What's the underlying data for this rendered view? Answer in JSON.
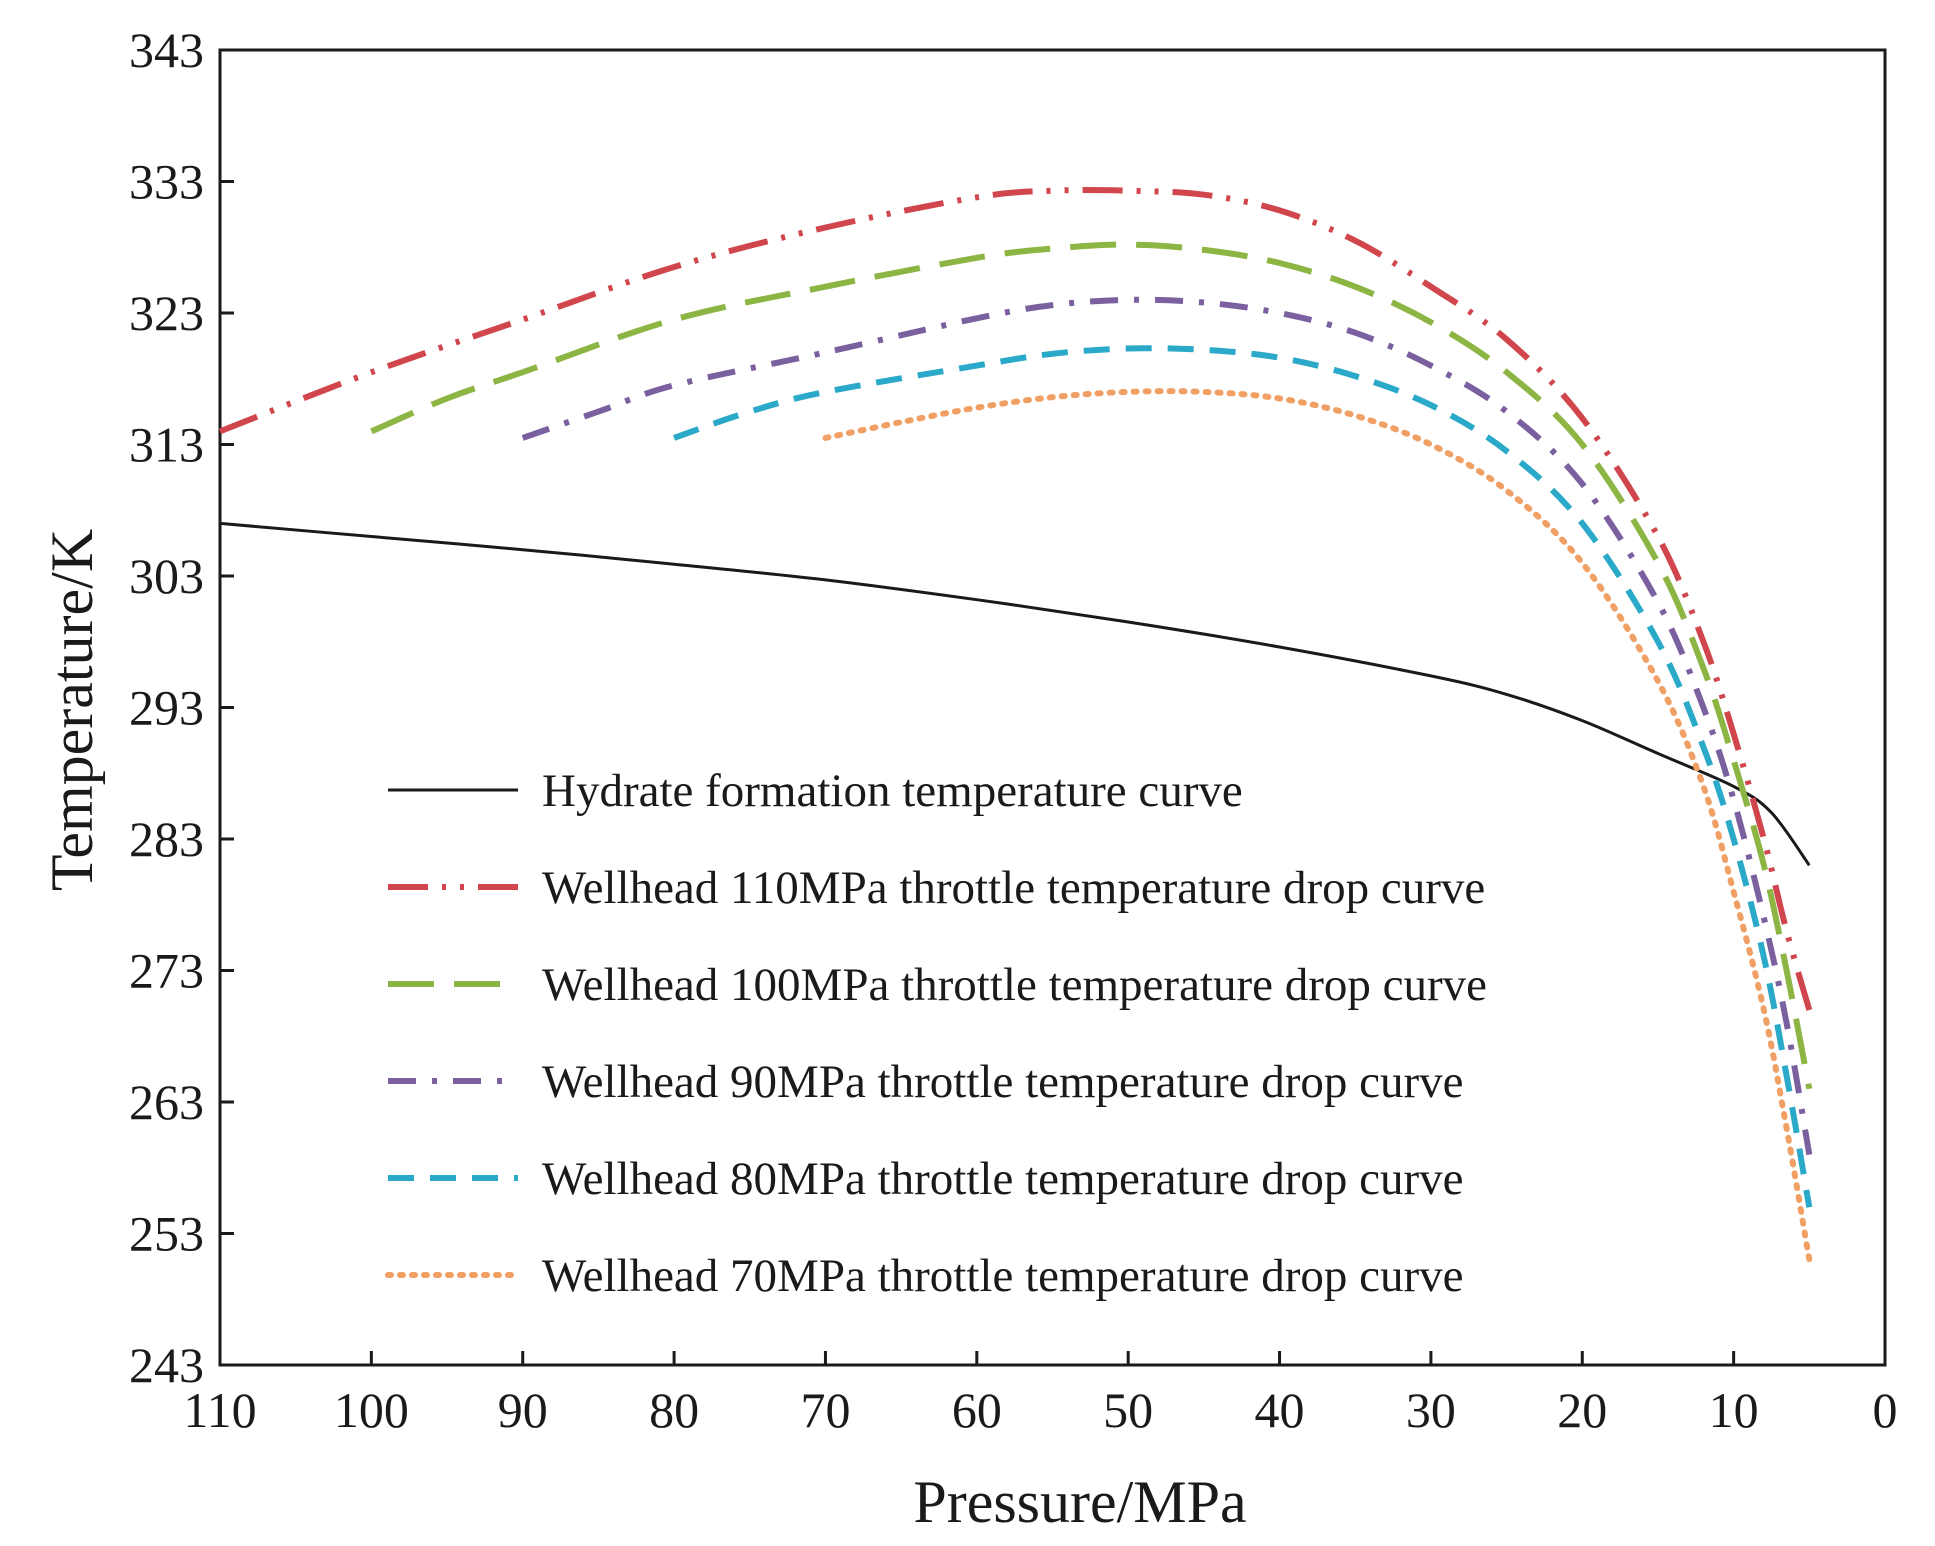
{
  "chart_data": {
    "type": "line",
    "title": "",
    "xlabel": "Pressure/MPa",
    "ylabel": "Temperature/K",
    "xlim": [
      110,
      0
    ],
    "ylim": [
      243,
      343
    ],
    "x_ticks": [
      "110",
      "100",
      "90",
      "80",
      "70",
      "60",
      "50",
      "40",
      "30",
      "20",
      "10",
      "0"
    ],
    "y_ticks": [
      "343",
      "333",
      "323",
      "313",
      "303",
      "293",
      "283",
      "273",
      "263",
      "253",
      "243"
    ],
    "grid": false,
    "legend_position": "lower-left",
    "series": [
      {
        "name": "Hydrate formation temperature curve",
        "color": "#1a1a1a",
        "style": "solid",
        "points": [
          [
            110,
            307
          ],
          [
            100,
            306
          ],
          [
            90,
            305
          ],
          [
            80,
            303.9
          ],
          [
            70,
            302.7
          ],
          [
            60,
            301.2
          ],
          [
            50,
            299.5
          ],
          [
            40,
            297.6
          ],
          [
            30,
            295.4
          ],
          [
            25,
            294
          ],
          [
            20,
            292
          ],
          [
            15,
            289.5
          ],
          [
            10,
            287
          ],
          [
            7.5,
            285
          ],
          [
            5,
            281
          ]
        ]
      },
      {
        "name": "Wellhead 110MPa throttle temperature drop curve",
        "color": "#d0464c",
        "style": "dash-dot-dot",
        "points": [
          [
            110,
            314
          ],
          [
            100,
            318.5
          ],
          [
            90,
            322.5
          ],
          [
            80,
            326.5
          ],
          [
            70,
            329.5
          ],
          [
            60,
            331.8
          ],
          [
            55,
            332.3
          ],
          [
            50,
            332.3
          ],
          [
            45,
            332
          ],
          [
            40,
            330.8
          ],
          [
            35,
            328.5
          ],
          [
            30,
            325
          ],
          [
            25,
            321
          ],
          [
            20,
            315
          ],
          [
            15,
            306
          ],
          [
            12,
            298
          ],
          [
            10,
            291
          ],
          [
            8,
            283
          ],
          [
            6.5,
            276
          ],
          [
            5,
            270
          ]
        ]
      },
      {
        "name": "Wellhead 100MPa throttle temperature drop curve",
        "color": "#8db543",
        "style": "long-dash",
        "points": [
          [
            100,
            314
          ],
          [
            95,
            316.5
          ],
          [
            90,
            318.5
          ],
          [
            80,
            322.5
          ],
          [
            70,
            325
          ],
          [
            60,
            327.2
          ],
          [
            55,
            327.9
          ],
          [
            50,
            328.2
          ],
          [
            45,
            327.8
          ],
          [
            40,
            326.8
          ],
          [
            35,
            325
          ],
          [
            30,
            322.3
          ],
          [
            25,
            318.5
          ],
          [
            20,
            313
          ],
          [
            15,
            304
          ],
          [
            12,
            296
          ],
          [
            10,
            289
          ],
          [
            8,
            281
          ],
          [
            6.5,
            273
          ],
          [
            5,
            264
          ]
        ]
      },
      {
        "name": "Wellhead 90MPa throttle temperature drop curve",
        "color": "#7b60a0",
        "style": "dash-dot",
        "points": [
          [
            90,
            313.5
          ],
          [
            85,
            315.5
          ],
          [
            80,
            317.5
          ],
          [
            70,
            320
          ],
          [
            60,
            322.6
          ],
          [
            55,
            323.6
          ],
          [
            50,
            324
          ],
          [
            45,
            323.8
          ],
          [
            40,
            323
          ],
          [
            35,
            321.5
          ],
          [
            30,
            319
          ],
          [
            25,
            315.5
          ],
          [
            20,
            310
          ],
          [
            15,
            301
          ],
          [
            12,
            293
          ],
          [
            10,
            286
          ],
          [
            8,
            277
          ],
          [
            6.5,
            269
          ],
          [
            5,
            259
          ]
        ]
      },
      {
        "name": "Wellhead 80MPa throttle temperature drop curve",
        "color": "#2aa9c8",
        "style": "dash",
        "points": [
          [
            80,
            313.5
          ],
          [
            75,
            315.5
          ],
          [
            70,
            317
          ],
          [
            60,
            319
          ],
          [
            55,
            319.9
          ],
          [
            50,
            320.3
          ],
          [
            45,
            320.2
          ],
          [
            40,
            319.6
          ],
          [
            35,
            318.2
          ],
          [
            30,
            316
          ],
          [
            25,
            312.5
          ],
          [
            20,
            307
          ],
          [
            15,
            298
          ],
          [
            12,
            290
          ],
          [
            10,
            283
          ],
          [
            8,
            274
          ],
          [
            6.5,
            265
          ],
          [
            5,
            255
          ]
        ]
      },
      {
        "name": "Wellhead 70MPa throttle temperature drop curve",
        "color": "#f0a064",
        "style": "dot",
        "points": [
          [
            70,
            313.5
          ],
          [
            65,
            314.7
          ],
          [
            60,
            315.8
          ],
          [
            55,
            316.6
          ],
          [
            50,
            317
          ],
          [
            45,
            317
          ],
          [
            40,
            316.5
          ],
          [
            35,
            315.2
          ],
          [
            30,
            313
          ],
          [
            25,
            309.5
          ],
          [
            20,
            304
          ],
          [
            15,
            295
          ],
          [
            12,
            287
          ],
          [
            10,
            279
          ],
          [
            8,
            270
          ],
          [
            6.5,
            261
          ],
          [
            5,
            251
          ]
        ]
      }
    ]
  }
}
